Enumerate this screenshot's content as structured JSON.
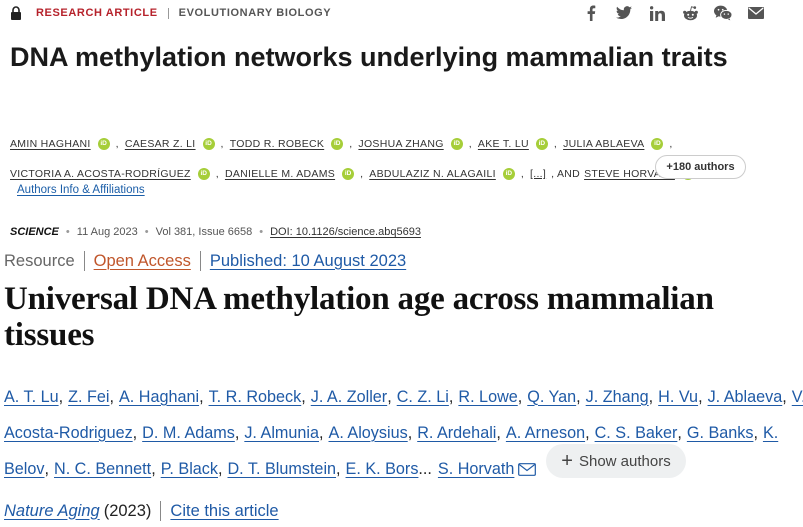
{
  "science": {
    "category_primary": "RESEARCH ARTICLE",
    "category_secondary": "EVOLUTIONARY BIOLOGY",
    "share_icons": [
      "facebook-icon",
      "twitter-icon",
      "linkedin-icon",
      "reddit-icon",
      "wechat-icon",
      "email-icon"
    ],
    "title": "DNA methylation networks underlying mammalian traits",
    "authors_row1": [
      "AMIN HAGHANI",
      "CAESAR Z. LI",
      "TODD R. ROBECK",
      "JOSHUA ZHANG",
      "AKE T. LU",
      "JULIA ABLAEVA"
    ],
    "authors_row2": [
      "VICTORIA A. ACOSTA-RODRÍGUEZ",
      "DANIELLE M. ADAMS",
      "ABDULAZIZ N. ALAGAILI"
    ],
    "ellipsis": "[...]",
    "and_text": ", AND",
    "last_author": "STEVE HORVATH",
    "orcid_label": "iD",
    "more_authors_label": "+180 authors",
    "affiliations_label": "Authors Info & Affiliations",
    "journal": "SCIENCE",
    "date": "11 Aug 2023",
    "volume": "Vol 381, Issue 6658",
    "doi": "DOI: 10.1126/science.abq5693"
  },
  "nature": {
    "article_type": "Resource",
    "access": "Open Access",
    "published": "Published: 10 August 2023",
    "title": "Universal DNA methylation age across mammalian tissues",
    "authors_line1": [
      "A. T. Lu",
      "Z. Fei",
      "A. Haghani",
      "T. R. Robeck",
      "J. A. Zoller",
      "C. Z. Li",
      "R. Lowe",
      "Q. Yan",
      "J. Zhang",
      "H. Vu",
      "J. Ablaeva",
      "V. A."
    ],
    "authors_line2": [
      "Acosta-Rodriguez",
      "D. M. Adams",
      "J. Almunia",
      "A. Aloysius",
      "R. Ardehali",
      "A. Arneson",
      "C. S. Baker",
      "G. Banks",
      "K."
    ],
    "authors_line3": [
      "Belov",
      "N. C. Bennett",
      "P. Black",
      "D. T. Blumstein",
      "E. K. Bors"
    ],
    "ellipsis": "...",
    "last_author": "S. Horvath",
    "show_authors_label": "Show authors",
    "journal_name": "Nature Aging",
    "year": "(2023)",
    "cite_label": "Cite this article"
  }
}
